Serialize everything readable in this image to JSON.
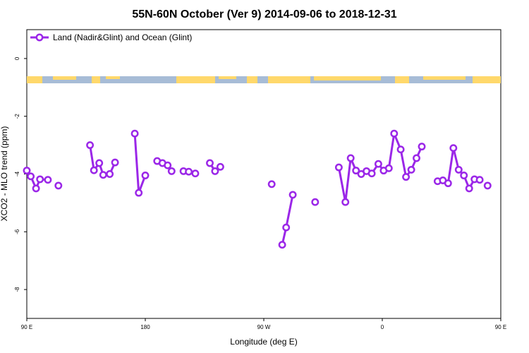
{
  "chart_data": {
    "type": "line",
    "title": "55N-60N October (Ver 9)   2014-09-06 to 2018-12-31",
    "xlabel": "Longitude (deg E)",
    "ylabel": "XCO2 - MLO trend (ppm)",
    "xlim": [
      90,
      450
    ],
    "ylim": [
      -9,
      1
    ],
    "x_ticks": [
      {
        "value": 90,
        "label": "90 E"
      },
      {
        "value": 180,
        "label": "180"
      },
      {
        "value": 270,
        "label": "90 W"
      },
      {
        "value": 360,
        "label": "0"
      },
      {
        "value": 450,
        "label": "90 E"
      },
      {
        "value": 540,
        "label": "180"
      }
    ],
    "y_ticks": [
      {
        "value": 0,
        "label": "0"
      },
      {
        "value": -2,
        "label": "-2"
      },
      {
        "value": -4,
        "label": "-4"
      },
      {
        "value": -6,
        "label": "-6"
      },
      {
        "value": -8,
        "label": "-8"
      }
    ],
    "grid": false,
    "legend_position": "top-left",
    "land_band_y": -0.75,
    "series": [
      {
        "name": "Land (Nadir&Glint) and Ocean (Glint)",
        "color": "#9b27e8",
        "segments": [
          [
            [
              90,
              -3.88
            ],
            [
              93,
              -4.08
            ],
            [
              97,
              -4.5
            ],
            [
              100,
              -4.18
            ],
            [
              106,
              -4.2
            ]
          ],
          [
            [
              114,
              -4.4
            ]
          ],
          [
            [
              138,
              -3.0
            ],
            [
              141,
              -3.87
            ],
            [
              145,
              -3.62
            ],
            [
              148,
              -4.03
            ],
            [
              153,
              -4.0
            ],
            [
              157,
              -3.6
            ]
          ],
          [
            [
              172,
              -2.6
            ],
            [
              175,
              -4.65
            ],
            [
              180,
              -4.05
            ]
          ],
          [
            [
              189,
              -3.55
            ],
            [
              193,
              -3.62
            ],
            [
              197,
              -3.7
            ],
            [
              200,
              -3.9
            ]
          ],
          [
            [
              209,
              -3.9
            ],
            [
              213,
              -3.92
            ],
            [
              218,
              -3.98
            ]
          ],
          [
            [
              229,
              -3.62
            ],
            [
              233,
              -3.9
            ],
            [
              237,
              -3.75
            ]
          ],
          [
            [
              276,
              -4.35
            ]
          ],
          [
            [
              284,
              -6.45
            ],
            [
              287,
              -5.85
            ],
            [
              292,
              -4.72
            ]
          ],
          [
            [
              309,
              -4.97
            ]
          ],
          [
            [
              327,
              -3.77
            ],
            [
              332,
              -4.97
            ],
            [
              336,
              -3.45
            ],
            [
              340,
              -3.88
            ],
            [
              344,
              -4.0
            ],
            [
              348,
              -3.9
            ],
            [
              352,
              -3.98
            ],
            [
              357,
              -3.65
            ],
            [
              361,
              -3.88
            ],
            [
              365,
              -3.8
            ],
            [
              369,
              -2.6
            ],
            [
              374,
              -3.15
            ],
            [
              378,
              -4.1
            ],
            [
              382,
              -3.85
            ],
            [
              386,
              -3.45
            ],
            [
              390,
              -3.05
            ]
          ],
          [
            [
              402,
              -4.25
            ],
            [
              406,
              -4.22
            ],
            [
              410,
              -4.32
            ],
            [
              414,
              -3.1
            ],
            [
              418,
              -3.85
            ],
            [
              422,
              -4.05
            ],
            [
              426,
              -4.5
            ],
            [
              430,
              -4.18
            ],
            [
              434,
              -4.2
            ]
          ],
          [
            [
              440,
              -4.4
            ]
          ]
        ]
      }
    ]
  }
}
